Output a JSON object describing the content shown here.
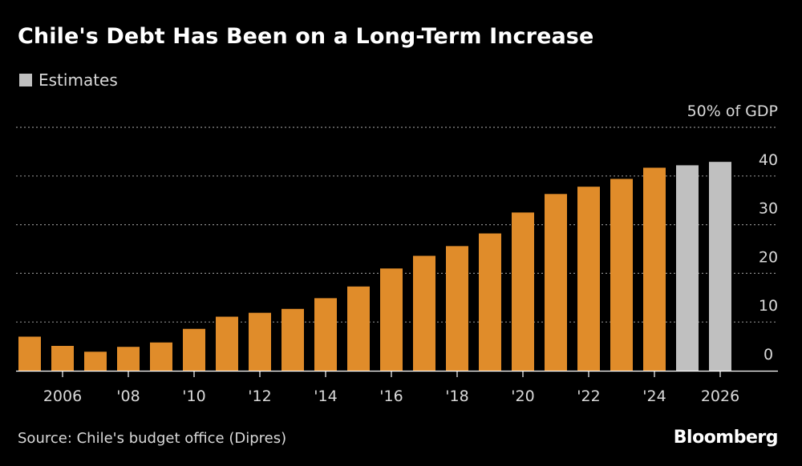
{
  "title": "Chile's Debt Has Been on a Long-Term Increase",
  "legend": {
    "estimates_label": "Estimates"
  },
  "source": "Source: Chile's budget office (Dipres)",
  "brand": "Bloomberg",
  "colors": {
    "actual": "#e08c2a",
    "estimate": "#c0c0c0",
    "grid": "#8a8a8a",
    "text": "#d9d9d9"
  },
  "chart_data": {
    "type": "bar",
    "categories": [
      "2005",
      "2006",
      "2007",
      "2008",
      "2009",
      "2010",
      "2011",
      "2012",
      "2013",
      "2014",
      "2015",
      "2016",
      "2017",
      "2018",
      "2019",
      "2020",
      "2021",
      "2022",
      "2023",
      "2024",
      "2025",
      "2026"
    ],
    "values": [
      7.0,
      5.1,
      3.9,
      4.9,
      5.8,
      8.6,
      11.1,
      11.9,
      12.7,
      14.9,
      17.3,
      21.0,
      23.6,
      25.6,
      28.2,
      32.5,
      36.3,
      37.8,
      39.4,
      41.7,
      42.2,
      42.9
    ],
    "estimate_from_index": 20,
    "x_tick_labels": [
      {
        "index": 1,
        "label": "2006"
      },
      {
        "index": 3,
        "label": "'08"
      },
      {
        "index": 5,
        "label": "'10"
      },
      {
        "index": 7,
        "label": "'12"
      },
      {
        "index": 9,
        "label": "'14"
      },
      {
        "index": 11,
        "label": "'16"
      },
      {
        "index": 13,
        "label": "'18"
      },
      {
        "index": 15,
        "label": "'20"
      },
      {
        "index": 17,
        "label": "'22"
      },
      {
        "index": 19,
        "label": "'24"
      },
      {
        "index": 21,
        "label": "2026"
      }
    ],
    "y_ticks": [
      0,
      10,
      20,
      30,
      40
    ],
    "y_top_label": "50% of GDP",
    "ylim": [
      0,
      50
    ],
    "grid": true,
    "ylabel": "",
    "xlabel": ""
  }
}
